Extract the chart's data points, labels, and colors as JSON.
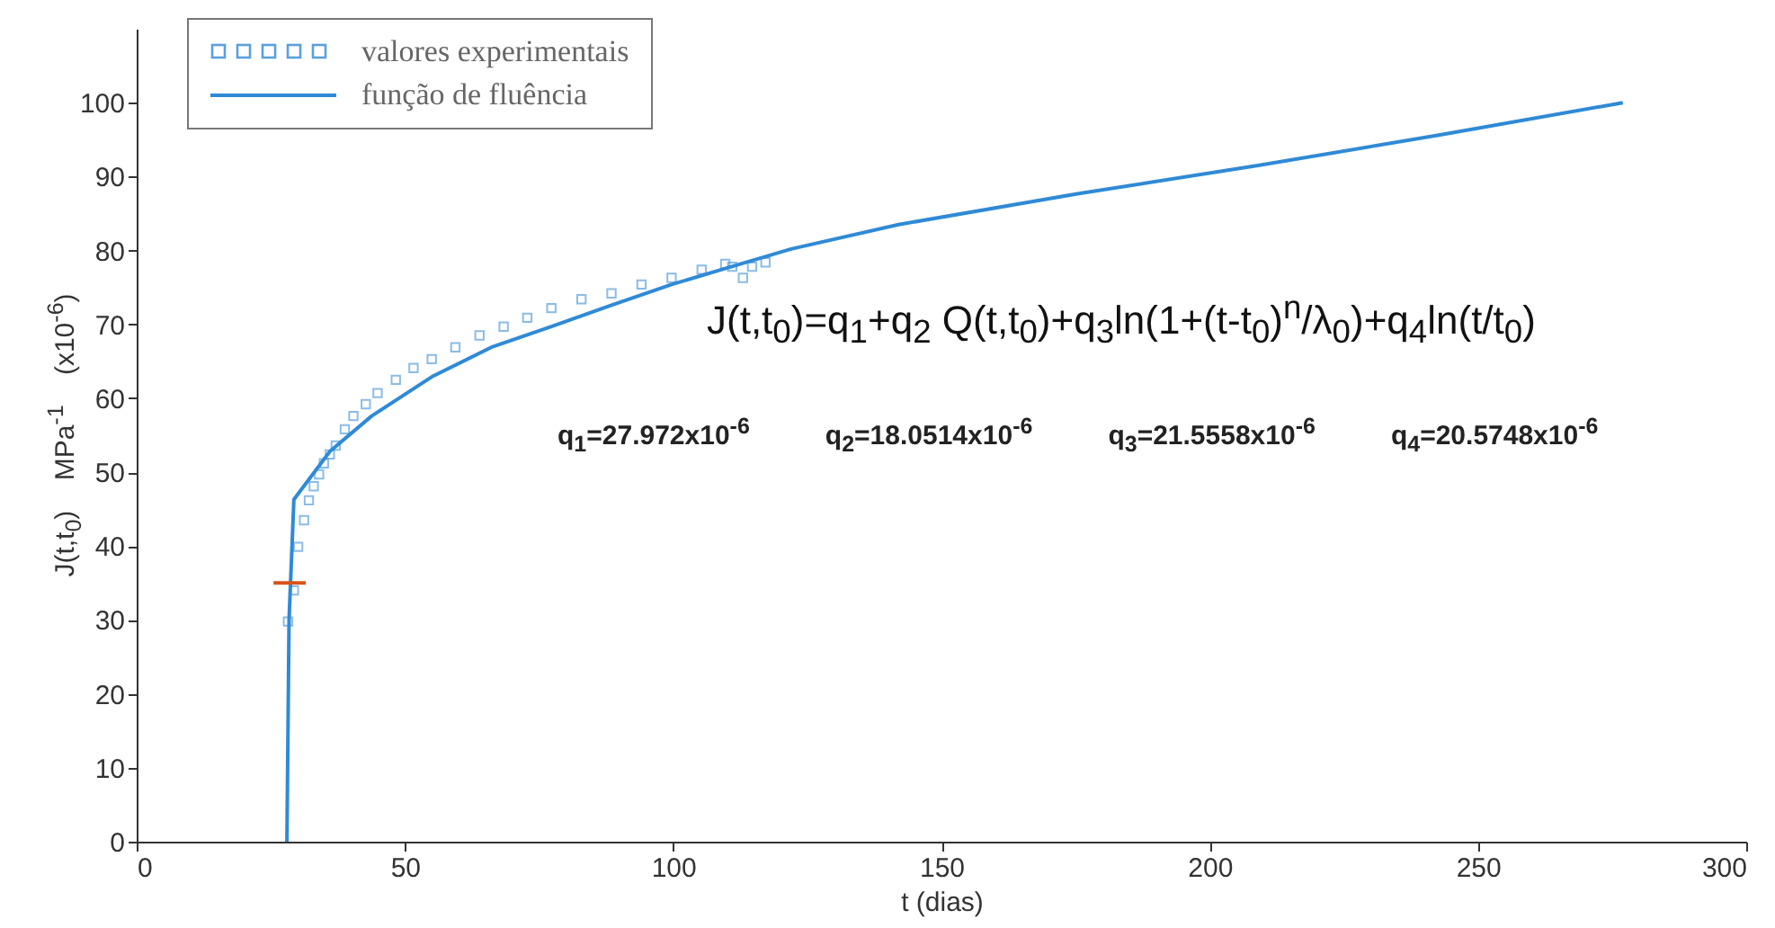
{
  "chart_data": {
    "type": "scatter",
    "xlabel": "t (dias)",
    "ylabel": "J(t,t$_{0}$)    MPa$^{-1}$    (x10$^{-6}$)",
    "xlim": [
      0,
      300
    ],
    "ylim": [
      0,
      110
    ],
    "xticks": [
      0,
      50,
      100,
      150,
      200,
      250,
      300
    ],
    "yticks": [
      0,
      10,
      20,
      30,
      40,
      50,
      60,
      70,
      80,
      90,
      100
    ],
    "grid": false,
    "legend": "top left",
    "annotations": [
      "J(t,t$_{0}$)=q$_{1}$+q$_{2}$ Q(t,t$_{0}$)+q$_{3}$ln(1+(t-t$_{0}$)$^{n}$/λ$_{0}$)+q$_{4}$ln(t/t$_{0}$)",
      "q$_{1}$=27.972x10$^{-6}$",
      "q$_{2}$=18.0514x10$^{-6}$",
      "q$_{3}$=21.5558x10$^{-6}$",
      "q$_{4}$=20.5748x10$^{-6}$"
    ],
    "series": [
      {
        "name": "valores experimentais",
        "marker": "square",
        "color": "#5aa0dc",
        "x": [
          28.2,
          29.3,
          30.1,
          31.2,
          32.1,
          33,
          34,
          34.9,
          36,
          37.1,
          38.8,
          40.4,
          42.7,
          44.9,
          48.3,
          51.6,
          55,
          59.4,
          63.9,
          68.4,
          72.8,
          77.3,
          82.9,
          88.5,
          94.1,
          99.7,
          105.3,
          109.7,
          111,
          113,
          114.7,
          117.2
        ],
        "values": [
          29.8,
          34,
          39.9,
          43.5,
          46.2,
          48.1,
          49.7,
          51.2,
          52.4,
          53.6,
          55.8,
          57.6,
          59.2,
          60.7,
          62.5,
          64.1,
          65.3,
          66.9,
          68.5,
          69.7,
          70.9,
          72.2,
          73.4,
          74.2,
          75.4,
          76.3,
          77.4,
          78.2,
          77.8,
          76.3,
          77.8,
          78.4
        ]
      },
      {
        "name": "função de fluência",
        "type": "line",
        "line_style": "solid",
        "color": "#2f8ad6",
        "x": [
          28,
          28.4,
          29.3,
          36,
          43.8,
          55,
          66.1,
          77.3,
          88.5,
          99.7,
          110.8,
          122,
          142,
          175.6,
          209,
          242.7,
          277
        ],
        "values": [
          0,
          30,
          46.3,
          52.8,
          57.6,
          62.9,
          66.9,
          69.7,
          72.6,
          75.4,
          77.8,
          80.2,
          83.5,
          87.7,
          91.5,
          95.6,
          100
        ]
      },
      {
        "type": "line",
        "line_style": "solid",
        "color": "#d95319",
        "x": [
          25.5,
          31.5
        ],
        "values": [
          35,
          35
        ]
      }
    ]
  }
}
